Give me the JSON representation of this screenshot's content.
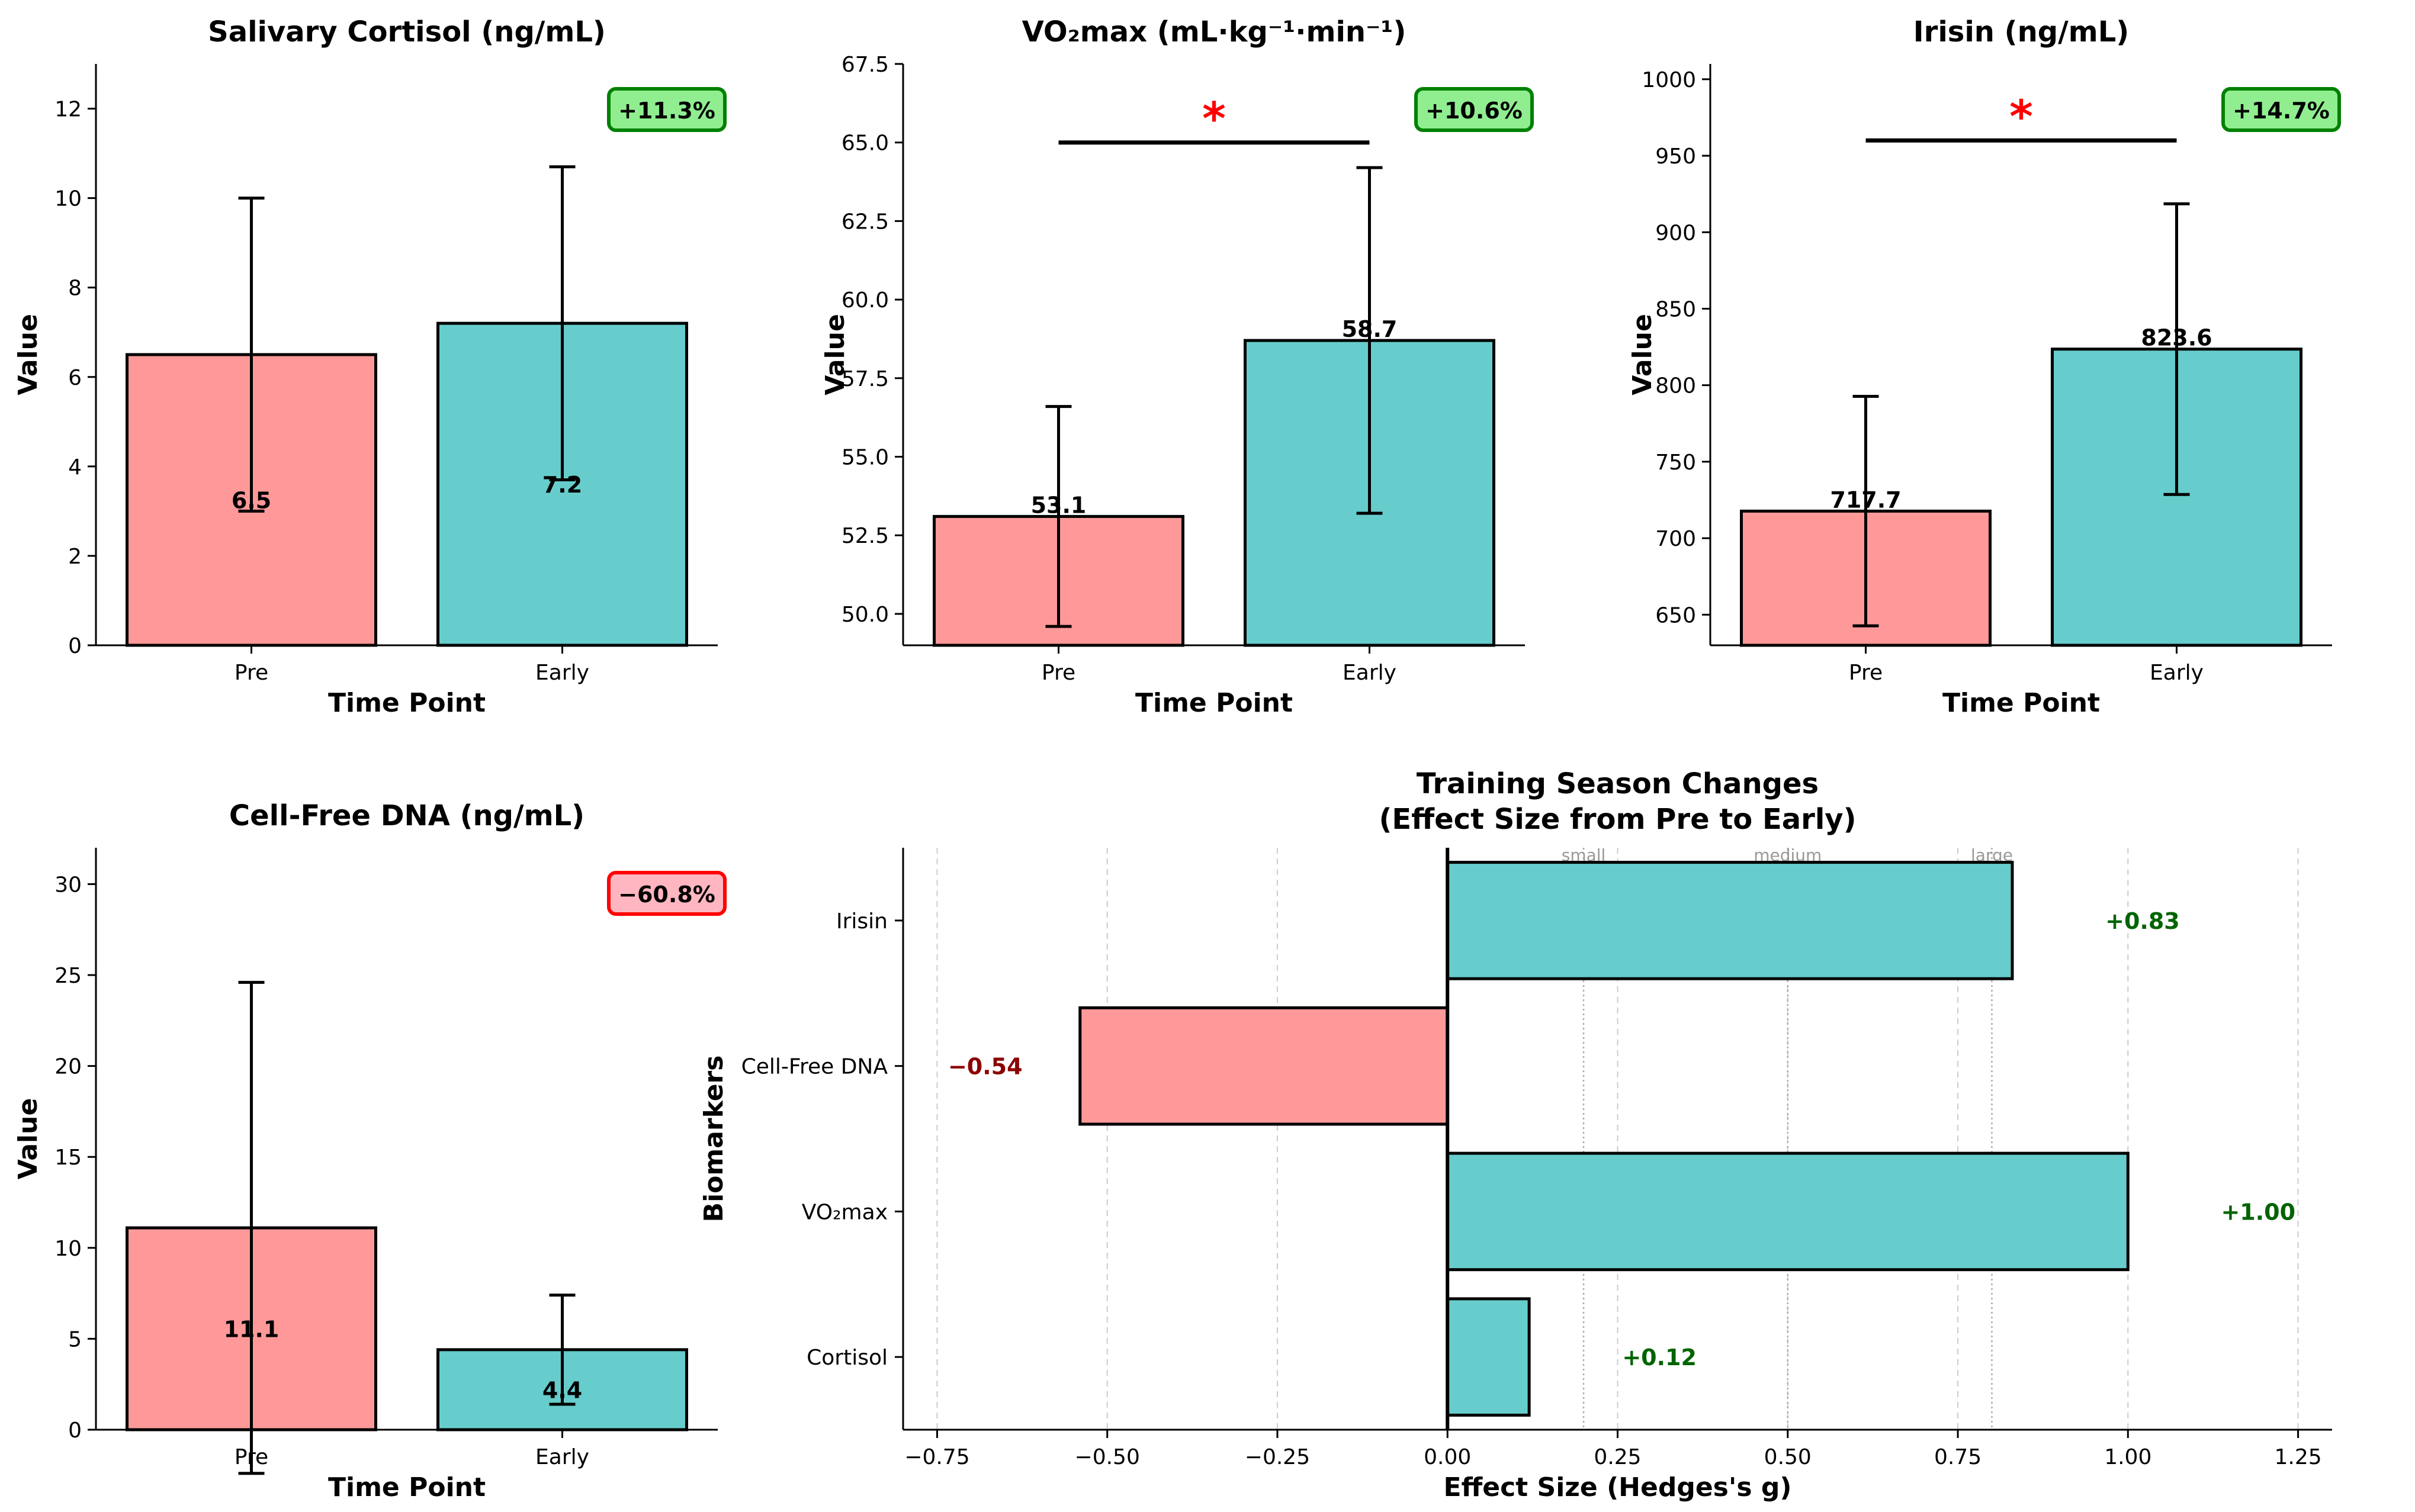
{
  "colors": {
    "pre": "#ff9999",
    "early": "#66cdcc",
    "pos_text": "#006400",
    "neg_text": "#8b0000",
    "sig": "#ff0000",
    "badge_pos_fill": "#90ee90",
    "badge_pos_border": "#008000",
    "badge_neg_fill": "#ffb6c1",
    "badge_neg_border": "#ff0000",
    "threshold": "#aaaaaa",
    "grid": "#cccccc"
  },
  "chart_data": [
    {
      "type": "bar",
      "title": "Salivary Cortisol (ng/mL)",
      "xlabel": "Time Point",
      "ylabel": "Value",
      "categories": [
        "Pre",
        "Early"
      ],
      "values": [
        6.5,
        7.2
      ],
      "value_labels": [
        "6.5",
        "7.2"
      ],
      "errors": [
        3.5,
        3.5
      ],
      "ylim": [
        0,
        13
      ],
      "yticks": [
        0,
        2,
        4,
        6,
        8,
        10,
        12
      ],
      "ytick_labels": [
        "0",
        "2",
        "4",
        "6",
        "8",
        "10",
        "12"
      ],
      "label_position": "middle",
      "change_badge": "+11.3%",
      "badge_type": "pos",
      "significance": null
    },
    {
      "type": "bar",
      "title": "VO₂max (mL·kg⁻¹·min⁻¹)",
      "xlabel": "Time Point",
      "ylabel": "Value",
      "categories": [
        "Pre",
        "Early"
      ],
      "values": [
        53.1,
        58.7
      ],
      "value_labels": [
        "53.1",
        "58.7"
      ],
      "errors": [
        3.5,
        5.5
      ],
      "ylim": [
        49,
        67.5
      ],
      "yticks": [
        50,
        52.5,
        55,
        57.5,
        60,
        62.5,
        65,
        67.5
      ],
      "ytick_labels": [
        "50.0",
        "52.5",
        "55.0",
        "57.5",
        "60.0",
        "62.5",
        "65.0",
        "67.5"
      ],
      "label_position": "top",
      "change_badge": "+10.6%",
      "badge_type": "pos",
      "significance": {
        "symbol": "*",
        "y": 65.0
      }
    },
    {
      "type": "bar",
      "title": "Irisin (ng/mL)",
      "xlabel": "Time Point",
      "ylabel": "Value",
      "categories": [
        "Pre",
        "Early"
      ],
      "values": [
        717.7,
        823.6
      ],
      "value_labels": [
        "717.7",
        "823.6"
      ],
      "errors": [
        75,
        95
      ],
      "ylim": [
        630,
        1010
      ],
      "yticks": [
        650,
        700,
        750,
        800,
        850,
        900,
        950,
        1000
      ],
      "ytick_labels": [
        "650",
        "700",
        "750",
        "800",
        "850",
        "900",
        "950",
        "1000"
      ],
      "label_position": "top",
      "change_badge": "+14.7%",
      "badge_type": "pos",
      "significance": {
        "symbol": "*",
        "y": 960
      }
    },
    {
      "type": "bar",
      "title": "Cell-Free DNA (ng/mL)",
      "xlabel": "Time Point",
      "ylabel": "Value",
      "categories": [
        "Pre",
        "Early"
      ],
      "values": [
        11.1,
        4.4
      ],
      "value_labels": [
        "11.1",
        "4.4"
      ],
      "errors": [
        13.5,
        3.0
      ],
      "ylim": [
        0,
        32
      ],
      "yticks": [
        0,
        5,
        10,
        15,
        20,
        25,
        30
      ],
      "ytick_labels": [
        "0",
        "5",
        "10",
        "15",
        "20",
        "25",
        "30"
      ],
      "label_position": "middle",
      "change_badge": "−60.8%",
      "badge_type": "neg",
      "significance": null
    },
    {
      "type": "barh",
      "title": "Training Season Changes",
      "subtitle": "(Effect Size from Pre to Early)",
      "xlabel": "Effect Size (Hedges's g)",
      "ylabel": "Biomarkers",
      "categories": [
        "Cortisol",
        "VO₂max",
        "Cell-Free DNA",
        "Irisin"
      ],
      "values": [
        0.12,
        1.0,
        -0.54,
        0.83
      ],
      "value_labels": [
        "+0.12",
        "+1.00",
        "−0.54",
        "+0.83"
      ],
      "xlim": [
        -0.8,
        1.3
      ],
      "xticks": [
        -0.75,
        -0.5,
        -0.25,
        0,
        0.25,
        0.5,
        0.75,
        1.0,
        1.25
      ],
      "xtick_labels": [
        "−0.75",
        "−0.50",
        "−0.25",
        "0.00",
        "0.25",
        "0.50",
        "0.75",
        "1.00",
        "1.25"
      ],
      "thresholds": [
        {
          "value": 0.2,
          "label": "small"
        },
        {
          "value": 0.5,
          "label": "medium"
        },
        {
          "value": 0.8,
          "label": "large"
        }
      ],
      "grid": "x-dashed"
    }
  ]
}
